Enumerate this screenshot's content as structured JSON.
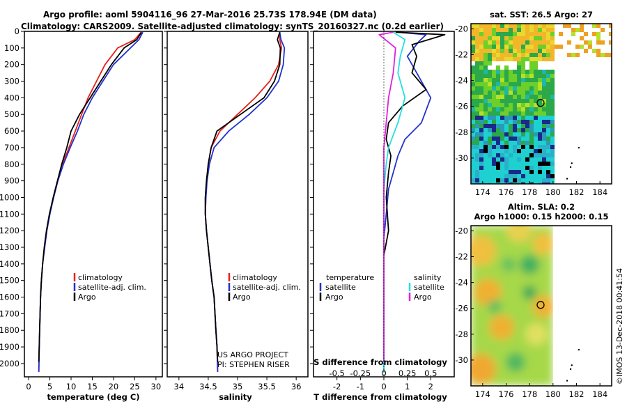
{
  "header": {
    "line1": "Argo profile: aoml 5904116_96 27-Mar-2016 25.73S 178.94E (DM data)",
    "line2": "Climatology: CARS2009. Satellite-adjusted climatology: synTS_20160327.nc (0.2d earlier)"
  },
  "colors": {
    "climatology": "#e8201a",
    "satellite": "#2233cc",
    "argo": "#000000",
    "sat_salinity": "#22e0e0",
    "argo_salinity": "#e020e0"
  },
  "chart_data": [
    {
      "type": "line",
      "name": "temperature-profile",
      "xlabel": "temperature (deg C)",
      "ylabel": "",
      "xlim": [
        -1,
        31.5
      ],
      "ylim": [
        2080,
        0
      ],
      "xticks": [
        0,
        5,
        10,
        15,
        20,
        25,
        30
      ],
      "yticks": [
        0,
        100,
        200,
        300,
        400,
        500,
        600,
        700,
        800,
        900,
        1000,
        1100,
        1200,
        1300,
        1400,
        1500,
        1600,
        1700,
        1800,
        1900,
        2000
      ],
      "legend": [
        "climatology",
        "satellite-adj. clim.",
        "Argo"
      ],
      "legend_position": "bottom-center",
      "series": [
        {
          "name": "climatology",
          "color": "#e8201a",
          "x": [
            26.5,
            25,
            21,
            18,
            16,
            14,
            12.5,
            11,
            9.5,
            8,
            6.8,
            5.8,
            5,
            4.2,
            3.7,
            3.3,
            3.0,
            2.8,
            2.6,
            2.5,
            2.4
          ],
          "y": [
            5,
            50,
            100,
            200,
            300,
            400,
            500,
            600,
            700,
            800,
            900,
            1000,
            1100,
            1200,
            1300,
            1400,
            1500,
            1600,
            1800,
            1900,
            2050
          ]
        },
        {
          "name": "satellite-adj. clim.",
          "color": "#2233cc",
          "x": [
            26.9,
            26,
            24,
            20,
            17.5,
            15,
            13,
            11.5,
            9.8,
            8.2,
            6.9,
            5.9,
            5,
            4.3,
            3.8,
            3.3,
            3.0,
            2.8,
            2.6,
            2.5,
            2.4
          ],
          "y": [
            5,
            50,
            100,
            200,
            300,
            400,
            500,
            600,
            700,
            800,
            900,
            1000,
            1100,
            1200,
            1300,
            1400,
            1500,
            1600,
            1800,
            1900,
            2050
          ]
        },
        {
          "name": "Argo",
          "color": "#000000",
          "x": [
            26.6,
            25.5,
            22.5,
            19.5,
            17,
            14.5,
            12,
            10,
            9,
            7.8,
            6.8,
            5.8,
            4.9,
            4.2,
            3.7,
            3.3,
            3.0,
            2.8,
            2.6,
            2.5,
            2.4
          ],
          "y": [
            5,
            50,
            100,
            200,
            300,
            400,
            500,
            600,
            700,
            800,
            900,
            1000,
            1100,
            1200,
            1300,
            1400,
            1500,
            1600,
            1800,
            1900,
            1990
          ]
        }
      ]
    },
    {
      "type": "line",
      "name": "salinity-profile",
      "xlabel": "salinity",
      "ylabel": "",
      "xlim": [
        33.8,
        36.2
      ],
      "ylim": [
        2080,
        0
      ],
      "xticks": [
        34,
        34.5,
        35,
        35.5,
        36
      ],
      "legend": [
        "climatology",
        "satellite-adj. clim.",
        "Argo"
      ],
      "legend_position": "bottom-center",
      "annotation": [
        "US ARGO PROJECT",
        "PI: STEPHEN RISER"
      ],
      "series": [
        {
          "name": "climatology",
          "color": "#e8201a",
          "x": [
            35.72,
            35.72,
            35.75,
            35.7,
            35.55,
            35.3,
            35.0,
            34.7,
            34.55,
            34.5,
            34.47,
            34.45,
            34.45,
            34.47,
            34.5,
            34.53,
            34.56,
            34.6,
            34.63,
            34.65,
            34.66
          ],
          "y": [
            5,
            50,
            100,
            200,
            300,
            400,
            500,
            600,
            700,
            800,
            900,
            1000,
            1100,
            1200,
            1300,
            1400,
            1500,
            1600,
            1800,
            1900,
            2050
          ]
        },
        {
          "name": "satellite-adj. clim.",
          "color": "#2233cc",
          "x": [
            35.72,
            35.74,
            35.8,
            35.78,
            35.7,
            35.5,
            35.2,
            34.85,
            34.6,
            34.52,
            34.48,
            34.46,
            34.45,
            34.47,
            34.5,
            34.53,
            34.56,
            34.6,
            34.63,
            34.65,
            34.66
          ],
          "y": [
            5,
            50,
            100,
            200,
            300,
            400,
            500,
            600,
            700,
            800,
            900,
            1000,
            1100,
            1200,
            1300,
            1400,
            1500,
            1600,
            1800,
            1900,
            2050
          ]
        },
        {
          "name": "Argo",
          "color": "#000000",
          "x": [
            35.72,
            35.68,
            35.73,
            35.72,
            35.63,
            35.45,
            35.05,
            34.65,
            34.55,
            34.5,
            34.47,
            34.45,
            34.45,
            34.47,
            34.5,
            34.53,
            34.56,
            34.6,
            34.63,
            34.65,
            34.66
          ],
          "y": [
            5,
            50,
            100,
            200,
            300,
            400,
            500,
            600,
            700,
            800,
            900,
            1000,
            1100,
            1200,
            1300,
            1400,
            1500,
            1600,
            1800,
            1900,
            1990
          ]
        }
      ]
    },
    {
      "type": "line",
      "name": "difference-profile",
      "xlabel": "T difference from climatology",
      "xlabel2": "S difference from climatology",
      "xlim": [
        -3,
        3
      ],
      "ylim": [
        2080,
        0
      ],
      "xticks": [
        -2,
        -1,
        0,
        1,
        2
      ],
      "xticklabels_s": [
        "-0.5",
        "-0.25",
        "0",
        "0.25",
        "0.5"
      ],
      "legend_left": {
        "title": "temperature",
        "items": [
          "satellite",
          "Argo"
        ]
      },
      "legend_right": {
        "title": "salinity",
        "items": [
          "satellite",
          "Argo"
        ]
      },
      "series": [
        {
          "name": "temperature satellite",
          "color": "#2233cc",
          "x": [
            0.6,
            1.8,
            1.5,
            1.0,
            1.4,
            2.0,
            1.6,
            0.9,
            0.6,
            0.4,
            0.2,
            0.1,
            0.0,
            0.0,
            0.0,
            0.0,
            0.0,
            0.0,
            0.0
          ],
          "y": [
            5,
            20,
            60,
            150,
            250,
            400,
            550,
            650,
            750,
            850,
            950,
            1100,
            1250,
            1400,
            1500,
            1600,
            1800,
            1900,
            2050
          ]
        },
        {
          "name": "temperature Argo",
          "color": "#000000",
          "x": [
            0.5,
            2.6,
            1.2,
            1.4,
            1.2,
            1.8,
            0.8,
            0.2,
            0.1,
            0.3,
            0.2,
            0.1,
            0.2,
            0.0,
            0.0,
            0.0,
            0.0,
            0.0,
            0.0
          ],
          "y": [
            5,
            20,
            80,
            150,
            250,
            350,
            450,
            550,
            650,
            750,
            850,
            1000,
            1200,
            1350,
            1500,
            1600,
            1800,
            1900,
            1990
          ]
        },
        {
          "name": "salinity satellite",
          "color": "#22e0e0",
          "x": [
            0.4,
            0.9,
            0.7,
            0.6,
            0.9,
            0.6,
            0.2,
            0.1,
            0.0,
            0.0,
            0.0,
            0.0,
            0.0,
            0.0,
            0.0
          ],
          "y": [
            5,
            50,
            150,
            250,
            400,
            550,
            700,
            800,
            950,
            1100,
            1300,
            1500,
            1700,
            1900,
            2050
          ]
        },
        {
          "name": "salinity Argo",
          "color": "#e020e0",
          "x": [
            0.4,
            -0.2,
            0.5,
            0.4,
            0.2,
            0.1,
            0.0,
            0.0,
            0.0,
            0.0,
            0.0
          ],
          "y": [
            5,
            20,
            100,
            250,
            400,
            550,
            700,
            900,
            1200,
            1600,
            1990
          ]
        }
      ]
    },
    {
      "type": "heatmap",
      "name": "sst-map",
      "title": "sat. SST: 26.5 Argo: 27",
      "xlim": [
        173,
        185
      ],
      "ylim": [
        -32,
        -19.6
      ],
      "xticks": [
        174,
        176,
        178,
        180,
        182,
        184
      ],
      "yticks": [
        -20,
        -22,
        -24,
        -26,
        -28,
        -30
      ],
      "argo_position": [
        178.94,
        -25.73
      ]
    },
    {
      "type": "heatmap",
      "name": "sla-map",
      "title": "Altim. SLA: 0.2",
      "subtitle": "Argo h1000: 0.15 h2000: 0.15",
      "xlim": [
        173,
        185
      ],
      "ylim": [
        -32,
        -19.6
      ],
      "xticks": [
        174,
        176,
        178,
        180,
        182,
        184
      ],
      "yticks": [
        -20,
        -22,
        -24,
        -26,
        -28,
        -30
      ],
      "argo_position": [
        178.94,
        -25.73
      ]
    }
  ],
  "footer": {
    "credit": "©IMOS 13-Dec-2018 00:41:54"
  }
}
